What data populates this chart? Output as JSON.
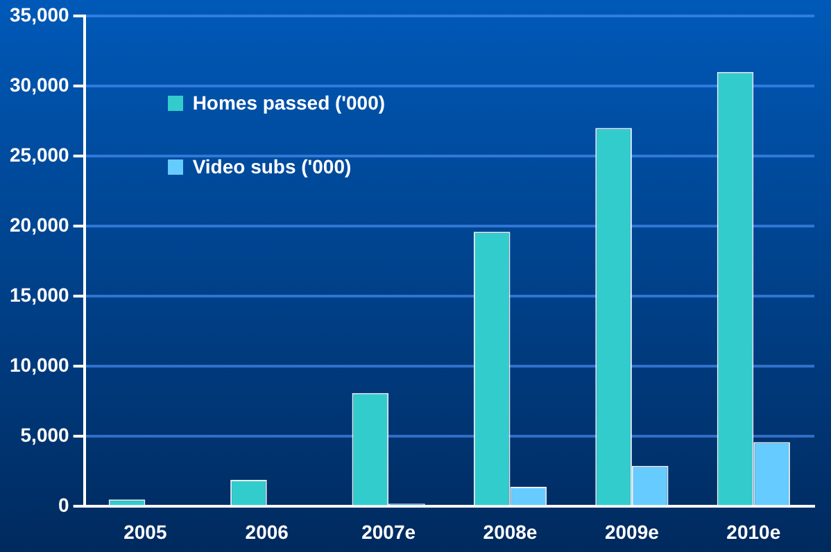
{
  "chart_data": {
    "type": "bar",
    "categories": [
      "2005",
      "2006",
      "2007e",
      "2008e",
      "2009e",
      "2010e"
    ],
    "series": [
      {
        "name": "Homes passed ('000)",
        "color": "#33cccc",
        "values": [
          500,
          1900,
          8100,
          19600,
          27000,
          31000
        ]
      },
      {
        "name": "Video subs ('000)",
        "color": "#66ccff",
        "values": [
          0,
          0,
          200,
          1400,
          2900,
          4600
        ]
      }
    ],
    "ylim": [
      0,
      35000
    ],
    "yticks": [
      {
        "value": 0,
        "label": "0"
      },
      {
        "value": 5000,
        "label": "5,000"
      },
      {
        "value": 10000,
        "label": "10,000"
      },
      {
        "value": 15000,
        "label": "15,000"
      },
      {
        "value": 20000,
        "label": "20,000"
      },
      {
        "value": 25000,
        "label": "25,000"
      },
      {
        "value": 30000,
        "label": "30,000"
      },
      {
        "value": 35000,
        "label": "35,000"
      }
    ],
    "grid": "y",
    "legend": "top left"
  }
}
